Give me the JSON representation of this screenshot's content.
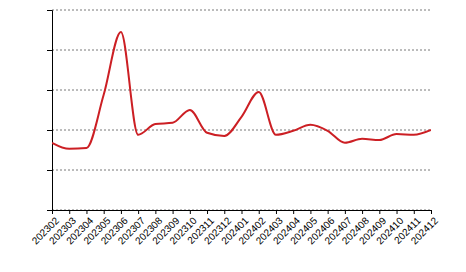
{
  "chart_data": {
    "type": "line",
    "categories": [
      "202302",
      "202303",
      "202304",
      "202305",
      "202306",
      "202307",
      "202308",
      "202309",
      "202310",
      "202311",
      "202312",
      "202401",
      "202402",
      "202403",
      "202404",
      "202405",
      "202406",
      "202407",
      "202408",
      "202409",
      "202410",
      "202411",
      "202412"
    ],
    "values": [
      1.68,
      1.53,
      1.55,
      2.88,
      4.45,
      1.88,
      2.15,
      2.18,
      2.5,
      1.93,
      1.85,
      2.33,
      2.95,
      1.88,
      1.98,
      2.13,
      1.98,
      1.68,
      1.78,
      1.75,
      1.9,
      1.88,
      2.0
    ],
    "color": "#cc1f24",
    "ylim": [
      0,
      5
    ],
    "yticks": [
      0,
      1,
      2,
      3,
      4,
      5
    ],
    "grid": true,
    "tick_labels": "x"
  }
}
